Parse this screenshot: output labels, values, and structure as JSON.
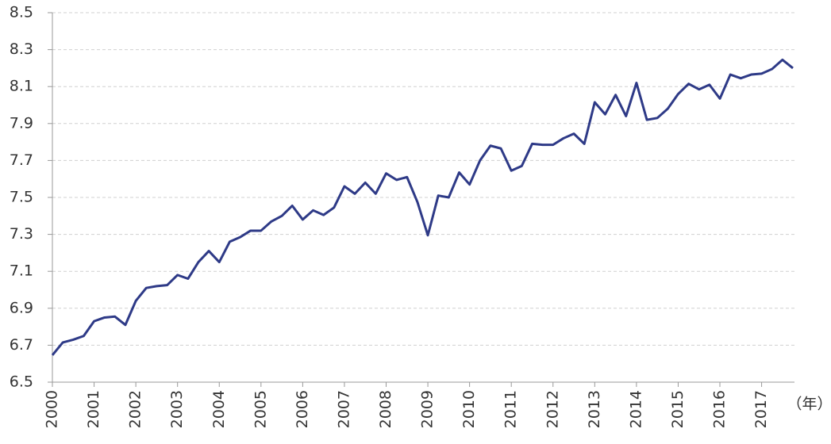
{
  "chart_data": {
    "type": "line",
    "xlabel": "（年）",
    "color": "#2e3a87",
    "grid": true,
    "x": [
      2000,
      2000.25,
      2000.5,
      2000.75,
      2001,
      2001.25,
      2001.5,
      2001.75,
      2002,
      2002.25,
      2002.5,
      2002.75,
      2003,
      2003.25,
      2003.5,
      2003.75,
      2004,
      2004.25,
      2004.5,
      2004.75,
      2005,
      2005.25,
      2005.5,
      2005.75,
      2006,
      2006.25,
      2006.5,
      2006.75,
      2007,
      2007.25,
      2007.5,
      2007.75,
      2008,
      2008.25,
      2008.5,
      2008.75,
      2009,
      2009.25,
      2009.5,
      2009.75,
      2010,
      2010.25,
      2010.5,
      2010.75,
      2011,
      2011.25,
      2011.5,
      2011.75,
      2012,
      2012.25,
      2012.5,
      2012.75,
      2013,
      2013.25,
      2013.5,
      2013.75,
      2014,
      2014.25,
      2014.5,
      2014.75,
      2015,
      2015.25,
      2015.5,
      2015.75,
      2016,
      2016.25,
      2016.5,
      2016.75,
      2017,
      2017.25,
      2017.5,
      2017.75
    ],
    "values": [
      6.646,
      6.715,
      6.73,
      6.75,
      6.83,
      6.85,
      6.855,
      6.81,
      6.94,
      7.01,
      7.02,
      7.025,
      7.08,
      7.06,
      7.15,
      7.21,
      7.15,
      7.26,
      7.285,
      7.32,
      7.32,
      7.37,
      7.4,
      7.455,
      7.38,
      7.43,
      7.405,
      7.445,
      7.56,
      7.52,
      7.58,
      7.52,
      7.63,
      7.595,
      7.61,
      7.475,
      7.295,
      7.51,
      7.5,
      7.635,
      7.57,
      7.7,
      7.78,
      7.765,
      7.645,
      7.67,
      7.79,
      7.785,
      7.785,
      7.82,
      7.845,
      7.79,
      8.015,
      7.95,
      8.055,
      7.94,
      8.12,
      7.92,
      7.93,
      7.98,
      8.06,
      8.115,
      8.085,
      8.11,
      8.035,
      8.165,
      8.145,
      8.165,
      8.17,
      8.195,
      8.245,
      8.2
    ],
    "xlim": [
      2000,
      2017.75
    ],
    "xticks": [
      2000,
      2001,
      2002,
      2003,
      2004,
      2005,
      2006,
      2007,
      2008,
      2009,
      2010,
      2011,
      2012,
      2013,
      2014,
      2015,
      2016,
      2017
    ],
    "ylim": [
      6.5,
      8.5
    ],
    "yticks": [
      6.5,
      6.7,
      6.9,
      7.1,
      7.3,
      7.5,
      7.7,
      7.9,
      8.1,
      8.3,
      8.5
    ]
  }
}
